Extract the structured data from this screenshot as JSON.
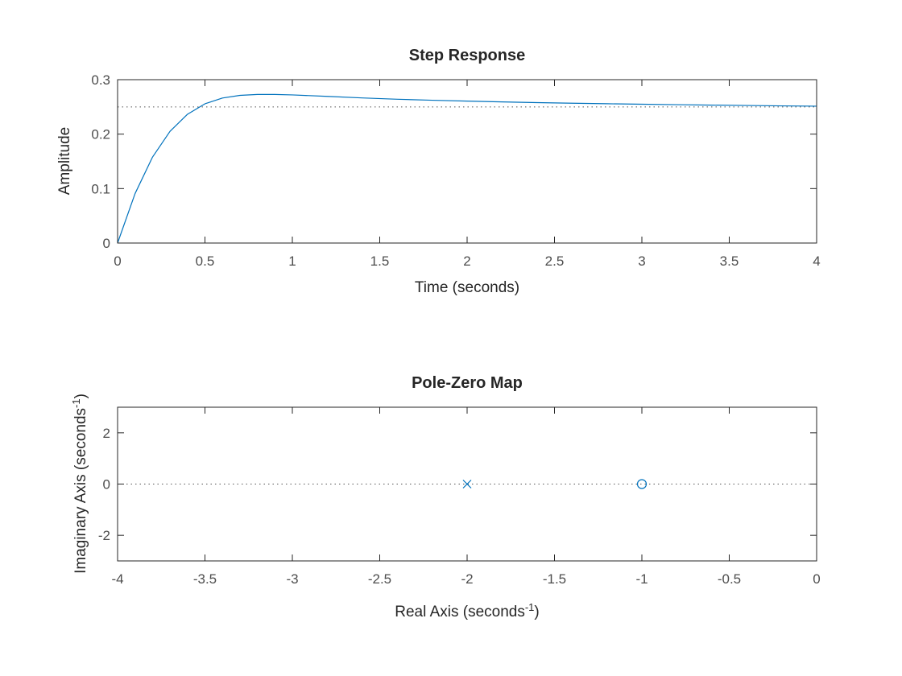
{
  "figure": {
    "background": "#ffffff",
    "axis_color": "#262626",
    "tick_label_color": "#4d4d4d",
    "series_color": "#0072bd"
  },
  "chart_data": [
    {
      "type": "line",
      "title": "Step Response",
      "xlabel": "Time (seconds)",
      "ylabel": "Amplitude",
      "xlim": [
        0,
        4
      ],
      "ylim": [
        0,
        0.3
      ],
      "xticks": [
        0,
        0.5,
        1,
        1.5,
        2,
        2.5,
        3,
        3.5,
        4
      ],
      "xtick_labels": [
        "0",
        "0.5",
        "1",
        "1.5",
        "2",
        "2.5",
        "3",
        "3.5",
        "4"
      ],
      "yticks": [
        0,
        0.1,
        0.2,
        0.3
      ],
      "ytick_labels": [
        "0",
        "0.1",
        "0.2",
        "0.3"
      ],
      "grid": false,
      "reference_line": {
        "y": 0.25,
        "style": "dotted"
      },
      "series": [
        {
          "x": [
            0,
            0.1,
            0.2,
            0.3,
            0.4,
            0.5,
            0.6,
            0.7,
            0.8,
            0.9,
            1.0,
            1.2,
            1.4,
            1.6,
            1.8,
            2.0,
            2.2,
            2.4,
            2.6,
            2.8,
            3.0,
            3.2,
            3.4,
            3.6,
            3.8,
            4.0
          ],
          "y": [
            0,
            0.0908,
            0.1579,
            0.2052,
            0.2365,
            0.2557,
            0.2663,
            0.2712,
            0.2729,
            0.2729,
            0.272,
            0.2693,
            0.2665,
            0.2641,
            0.2622,
            0.2606,
            0.2592,
            0.2579,
            0.2568,
            0.2558,
            0.2549,
            0.2541,
            0.2533,
            0.2526,
            0.2519,
            0.2513
          ]
        }
      ]
    },
    {
      "type": "scatter",
      "title": "Pole-Zero Map",
      "xlabel_text": "Real Axis (seconds",
      "xlabel_sup": "-1",
      "xlabel_close": ")",
      "ylabel_text": "Imaginary Axis (seconds",
      "ylabel_sup": "-1",
      "ylabel_close": ")",
      "xlim": [
        -4,
        0
      ],
      "ylim": [
        -3,
        3
      ],
      "xticks": [
        -4,
        -3.5,
        -3,
        -2.5,
        -2,
        -1.5,
        -1,
        -0.5,
        0
      ],
      "xtick_labels": [
        "-4",
        "-3.5",
        "-3",
        "-2.5",
        "-2",
        "-1.5",
        "-1",
        "-0.5",
        "0"
      ],
      "yticks": [
        2,
        0,
        -2
      ],
      "ytick_labels": [
        "2",
        "0",
        "-2"
      ],
      "grid": false,
      "reference_line": {
        "y": 0,
        "style": "dotted"
      },
      "poles": [
        {
          "re": -2,
          "im": 0
        }
      ],
      "zeros": [
        {
          "re": -1,
          "im": 0
        }
      ]
    }
  ]
}
